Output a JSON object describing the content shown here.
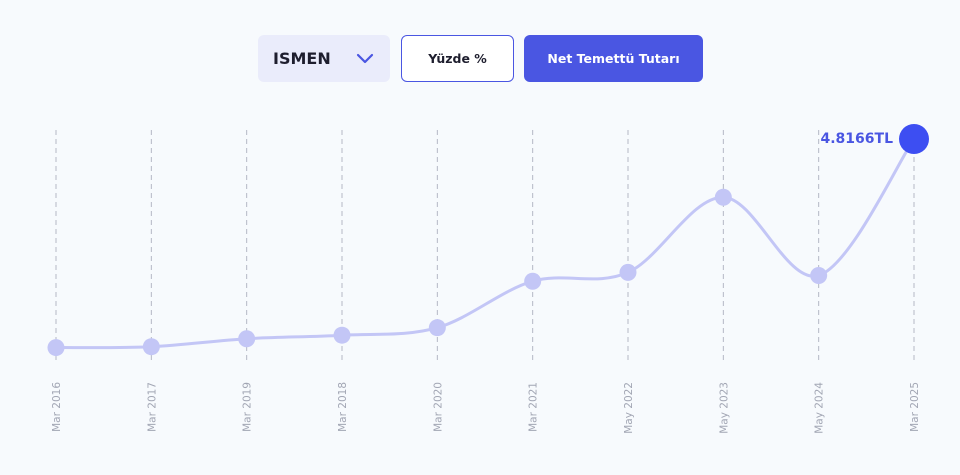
{
  "controls": {
    "ticker": "ISMEN",
    "percent_label": "Yüzde %",
    "amount_label": "Net Temettü Tutarı"
  },
  "colors": {
    "accent": "#4a56e2",
    "line": "#c3c6f6",
    "marker": "#c3c6f6",
    "highlight_marker": "#3d4ef2"
  },
  "chart_data": {
    "type": "line",
    "categories": [
      "Mar 2016",
      "Mar 2017",
      "Mar 2019",
      "Mar 2018",
      "Mar 2020",
      "Mar 2021",
      "May 2022",
      "May 2023",
      "May 2024",
      "Mar 2025"
    ],
    "series": [
      {
        "values": [
          0.1,
          0.12,
          0.3,
          0.38,
          0.55,
          1.6,
          1.8,
          3.5,
          1.73,
          4.8166
        ]
      }
    ],
    "last_value_label": "4.8166TL",
    "ylim": [
      0,
      4.8166
    ],
    "grid": "vertical-dashed"
  }
}
